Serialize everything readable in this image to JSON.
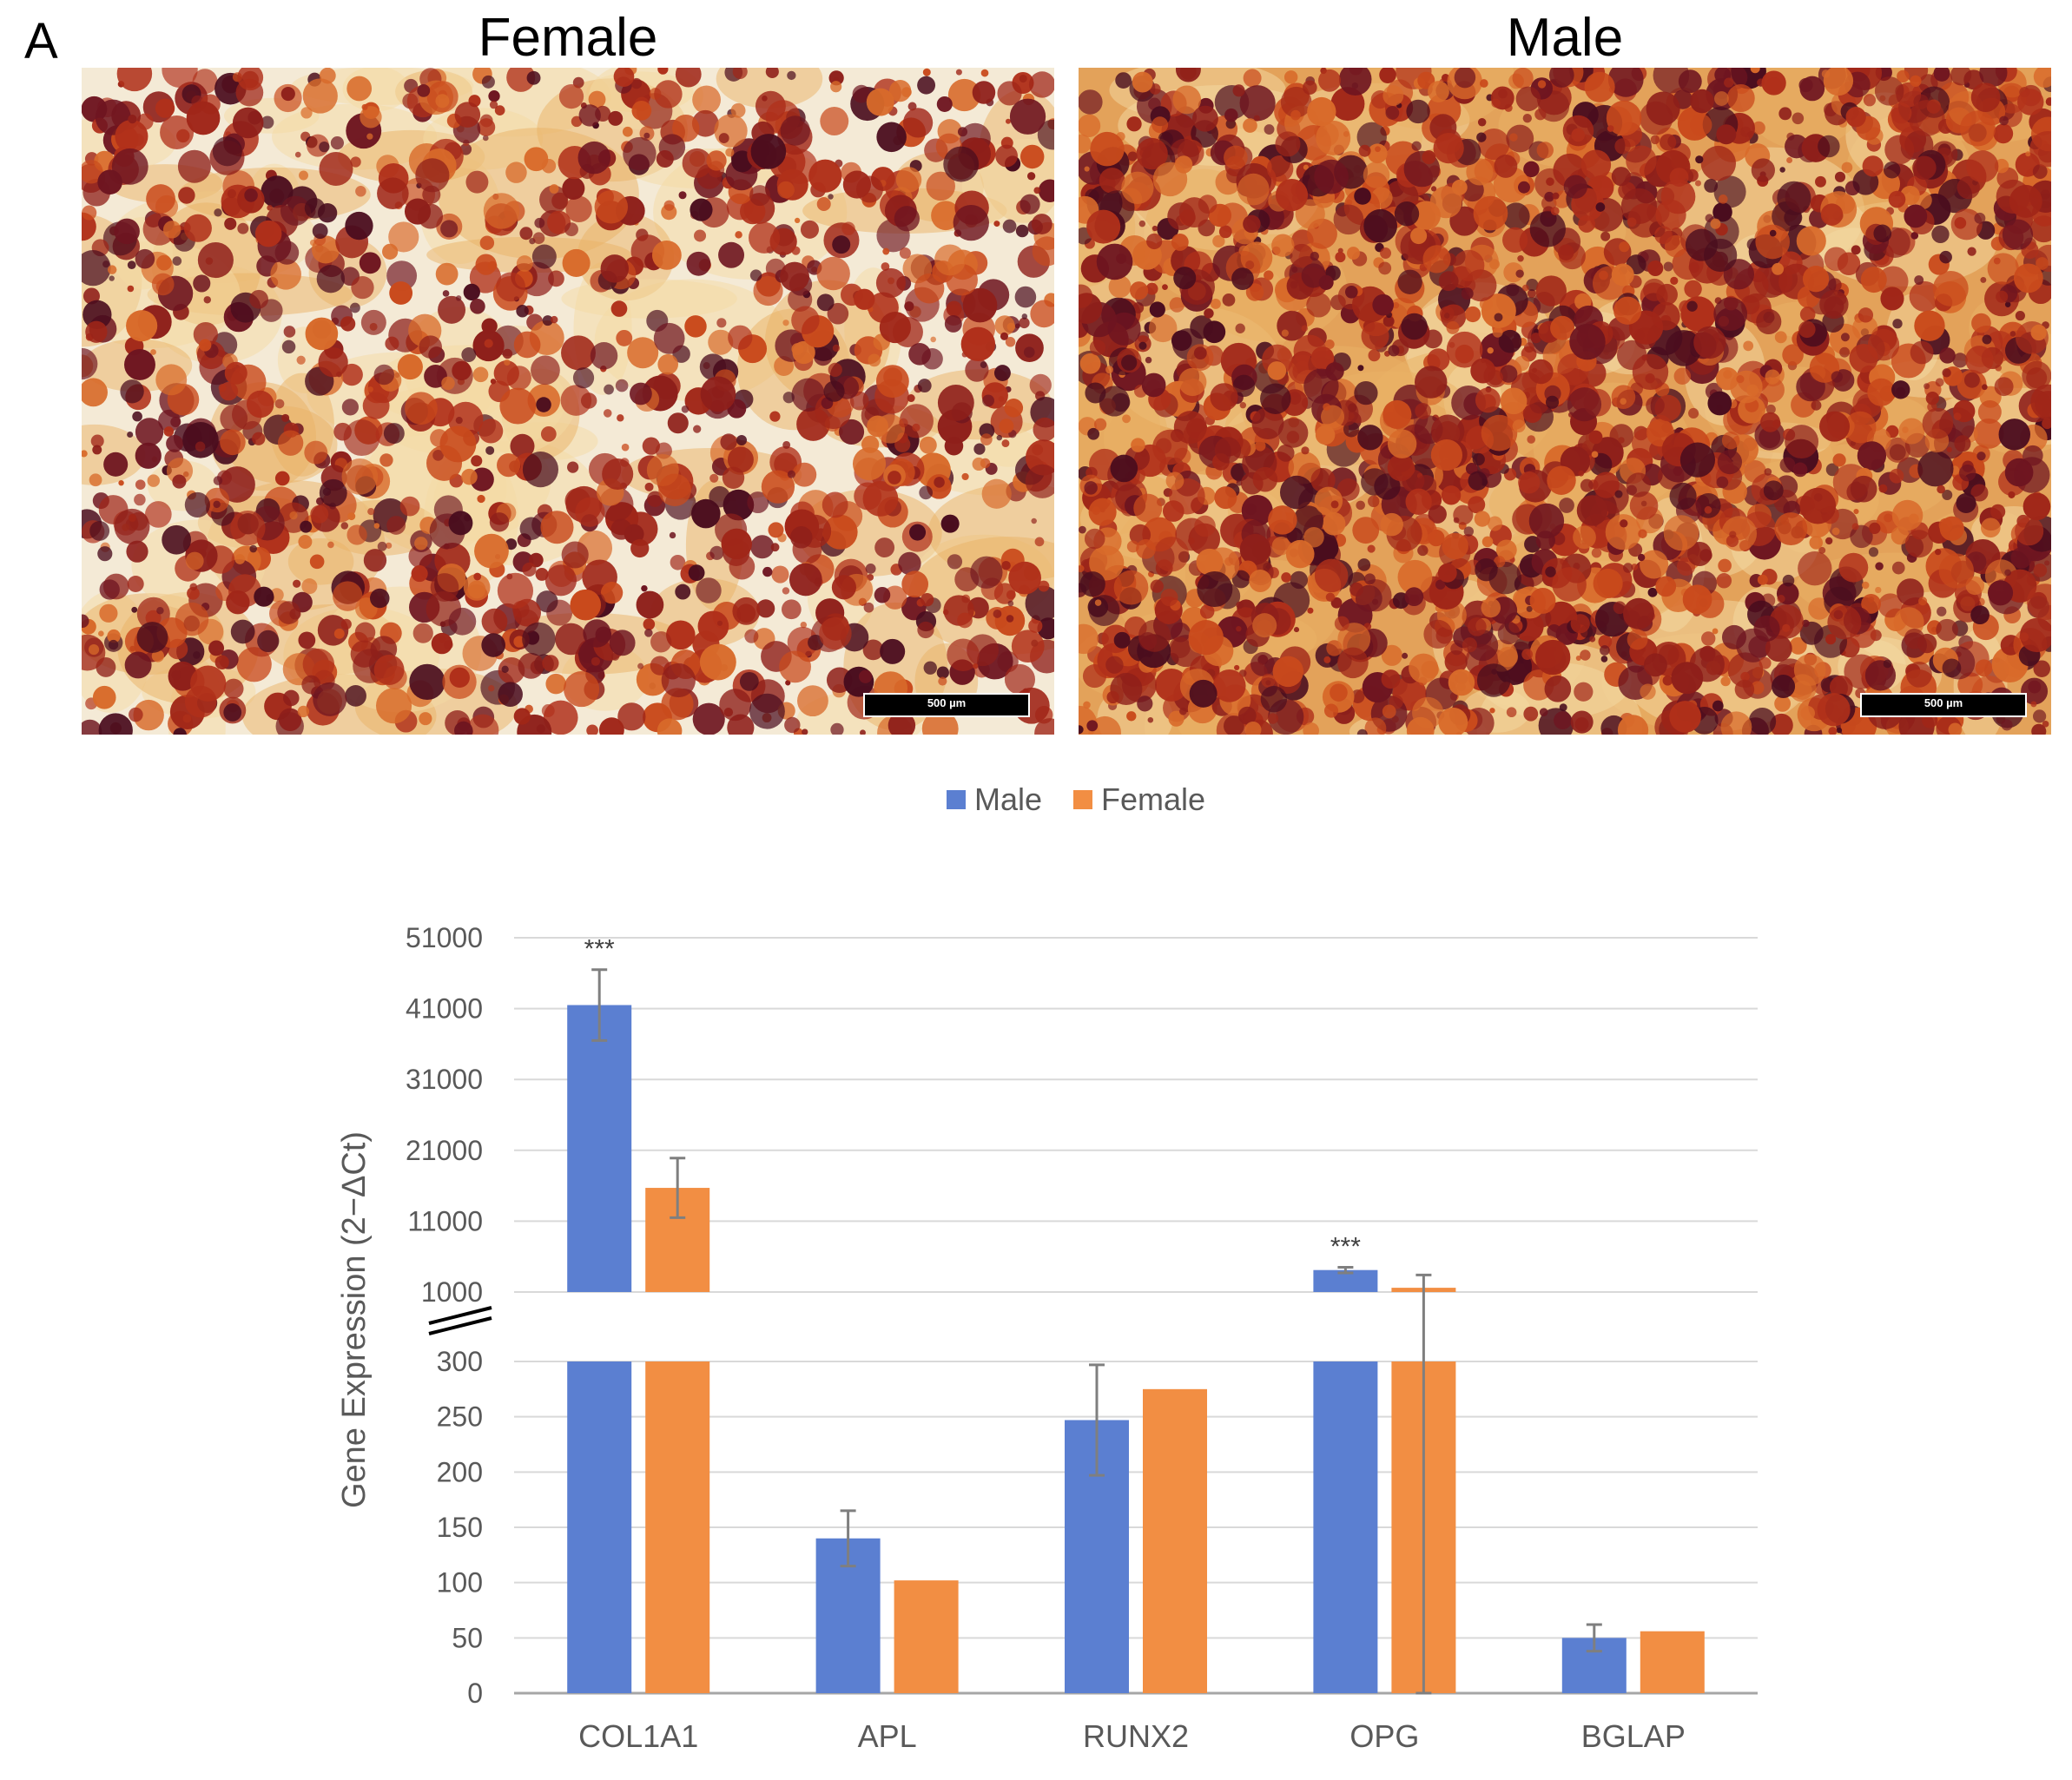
{
  "figure": {
    "panel_letter": "A",
    "panels": [
      {
        "title": "Female",
        "scale_bar_label": "500 µm"
      },
      {
        "title": "Male",
        "scale_bar_label": "500 µm"
      }
    ]
  },
  "colors": {
    "male": "#5b7fd1",
    "female": "#f28e43",
    "grid": "#d9d9d9",
    "axis_text": "#595959",
    "error_bar": "#7f7f7f"
  },
  "chart_data": {
    "type": "bar",
    "categories": [
      "COL1A1",
      "APL",
      "RUNX2",
      "OPG",
      "BGLAP"
    ],
    "series": [
      {
        "name": "Male",
        "values": [
          41500,
          140,
          247,
          4100,
          50
        ],
        "errors": [
          5000,
          25,
          50,
          400,
          12
        ]
      },
      {
        "name": "Female",
        "values": [
          15700,
          102,
          275,
          1600,
          56
        ],
        "errors": [
          4200,
          null,
          null,
          1800,
          null
        ]
      }
    ],
    "ylabel": "Gene Expression (2−ΔCt)",
    "xlabel": "",
    "axis_break": {
      "lower_range": [
        0,
        300
      ],
      "upper_range": [
        1000,
        51000
      ]
    },
    "y_ticks_upper": [
      "1000",
      "11000",
      "21000",
      "31000",
      "41000",
      "51000"
    ],
    "y_ticks_lower": [
      "0",
      "50",
      "100",
      "150",
      "200",
      "250",
      "300"
    ],
    "significance": [
      {
        "category": "COL1A1",
        "series": "Male",
        "label": "***"
      },
      {
        "category": "OPG",
        "series": "Male",
        "label": "***"
      }
    ],
    "legend": {
      "position": "top",
      "entries": [
        "Male",
        "Female"
      ]
    },
    "grid": true
  }
}
